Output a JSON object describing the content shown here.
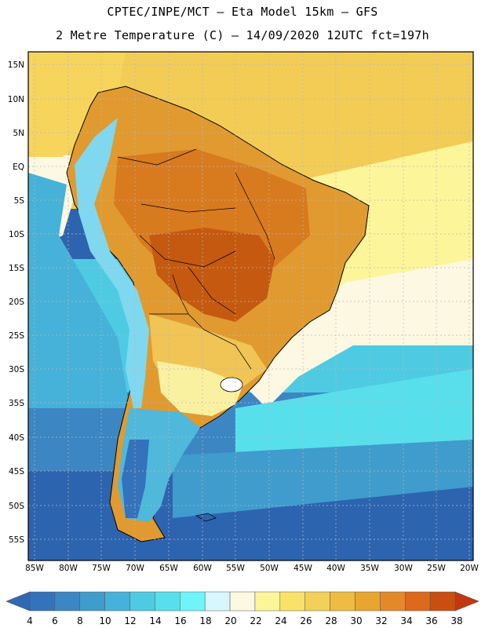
{
  "header": {
    "line1": "CPTEC/INPE/MCT –  Eta Model 15km – GFS",
    "line2": "2 Metre Temperature (C) – 14/09/2020 12UTC fct=197h"
  },
  "axes": {
    "lat_labels": [
      "15N",
      "10N",
      "5N",
      "EQ",
      "5S",
      "10S",
      "15S",
      "20S",
      "25S",
      "30S",
      "35S",
      "40S",
      "45S",
      "50S",
      "55S"
    ],
    "lon_labels": [
      "85W",
      "80W",
      "75W",
      "70W",
      "65W",
      "60W",
      "55W",
      "50W",
      "45W",
      "40W",
      "35W",
      "30W",
      "25W",
      "20W"
    ]
  },
  "colorbar": {
    "labels": [
      "4",
      "6",
      "8",
      "10",
      "12",
      "14",
      "16",
      "18",
      "20",
      "22",
      "24",
      "26",
      "28",
      "30",
      "32",
      "34",
      "36",
      "38"
    ],
    "low_color": "#2e69b5",
    "high_color": "#c2370f",
    "colors": [
      "#3472bb",
      "#3b86c3",
      "#3f9ccd",
      "#46b2d9",
      "#4ecbe3",
      "#58dfec",
      "#6ff4fa",
      "#d8f6fd",
      "#fdf8e2",
      "#fdf59a",
      "#f8e26a",
      "#f3d058",
      "#edbc40",
      "#e8a530",
      "#e4892a",
      "#da6a1c",
      "#c94f10"
    ]
  },
  "map_colors": {
    "frame_ocean": "#2d64b0",
    "north_atlantic": "#f3cc55",
    "north_pacific": "#f7d45c",
    "amazon_hot": "#d87a1e",
    "center_hot": "#c5590f",
    "brazil_warm": "#e09a30",
    "south_warm": "#f0c455",
    "pampa": "#faf1a0",
    "andes_cold": "#7fd8f0",
    "patagonia": "#4fb8db",
    "grid": "#b8b8b8",
    "coast": "#000000"
  }
}
